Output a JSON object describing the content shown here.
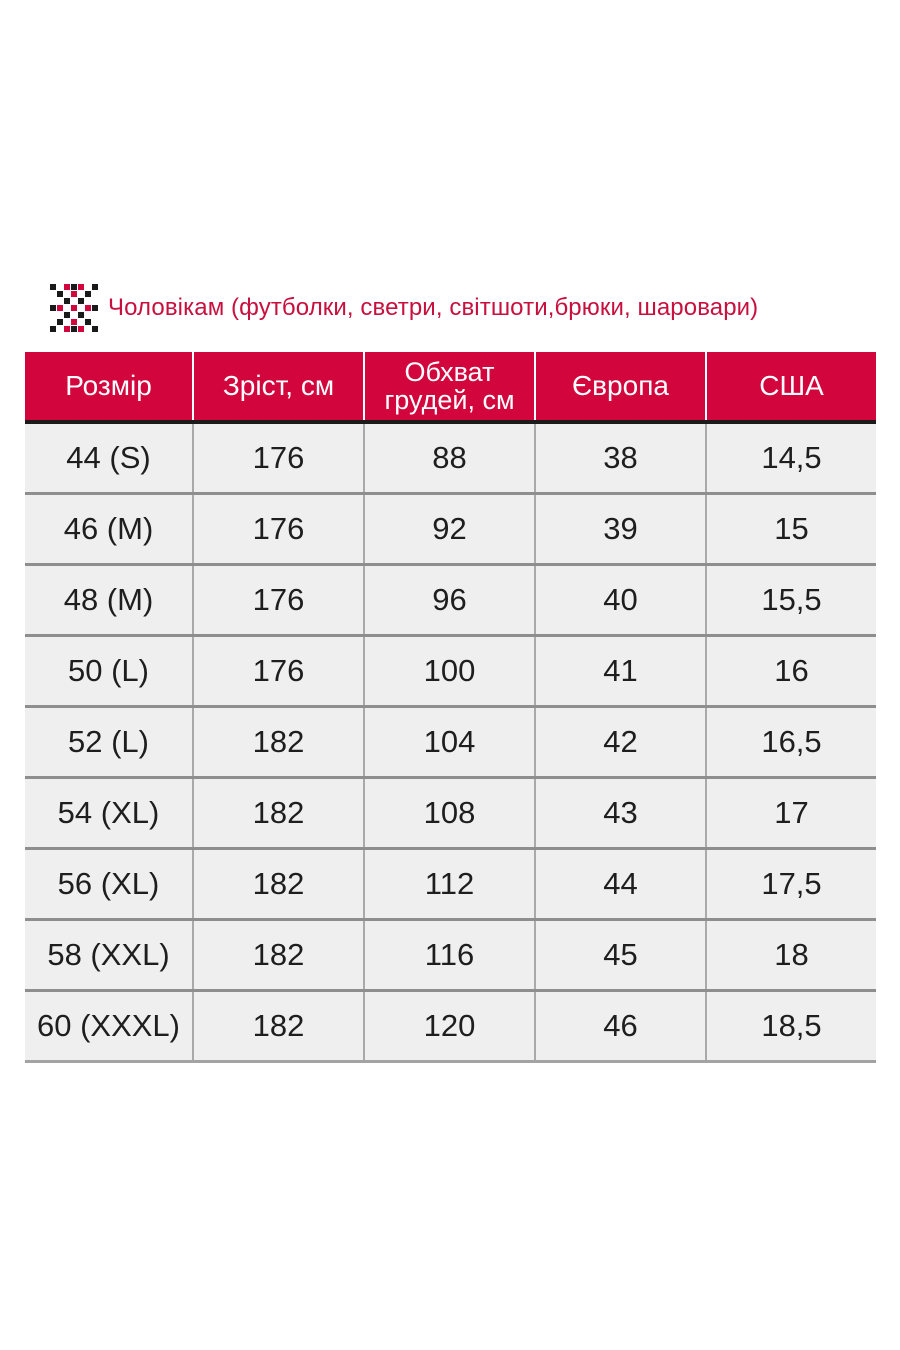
{
  "title": "Чоловікам (футболки, светри, світшоти,брюки, шаровари)",
  "ornament_icon": "embroidery-ornament-icon",
  "colors": {
    "accent": "#d2063c",
    "title_text": "#c8103f",
    "cell_bg": "#efefef"
  },
  "table": {
    "headers": [
      "Розмір",
      "Зріст, см",
      "Обхват грудей, см",
      "Європа",
      "США"
    ],
    "header_chest_line1": "Обхват",
    "header_chest_line2": "грудей, см",
    "rows": [
      [
        "44 (S)",
        "176",
        "88",
        "38",
        "14,5"
      ],
      [
        "46 (M)",
        "176",
        "92",
        "39",
        "15"
      ],
      [
        "48 (M)",
        "176",
        "96",
        "40",
        "15,5"
      ],
      [
        "50 (L)",
        "176",
        "100",
        "41",
        "16"
      ],
      [
        "52 (L)",
        "182",
        "104",
        "42",
        "16,5"
      ],
      [
        "54 (XL)",
        "182",
        "108",
        "43",
        "17"
      ],
      [
        "56 (XL)",
        "182",
        "112",
        "44",
        "17,5"
      ],
      [
        "58 (XXL)",
        "182",
        "116",
        "45",
        "18"
      ],
      [
        "60 (XXXL)",
        "182",
        "120",
        "46",
        "18,5"
      ]
    ]
  }
}
